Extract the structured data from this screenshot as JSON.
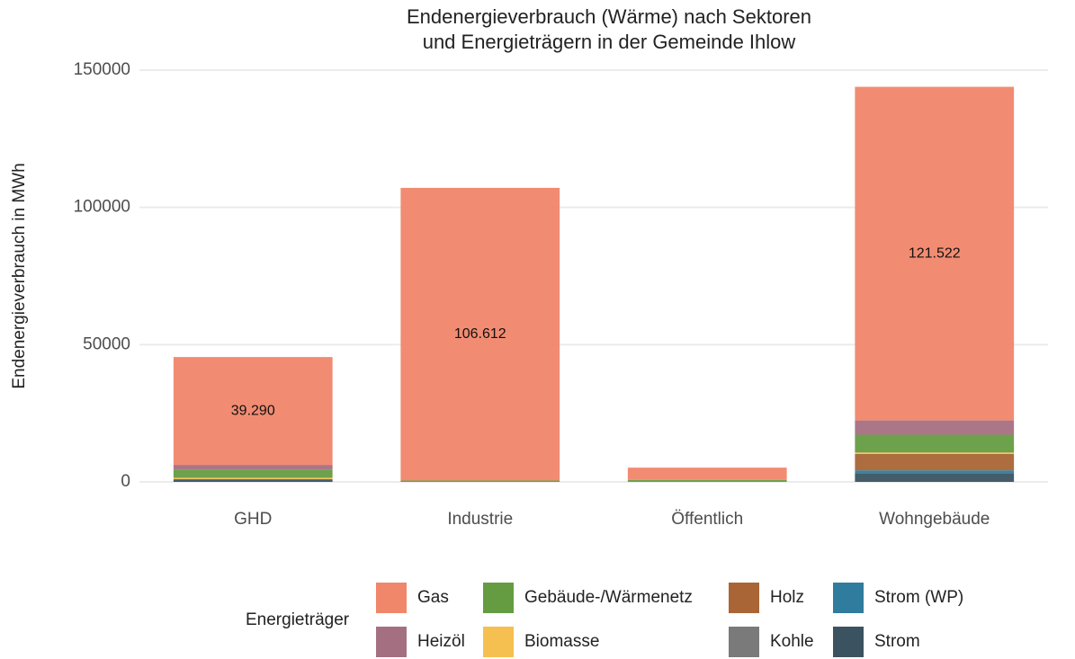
{
  "chart_data": {
    "type": "stacked_bar",
    "title": [
      "Endenergieverbrauch (Wärme) nach Sektoren",
      "und Energieträgern in der Gemeinde Ihlow"
    ],
    "y_label": "Endenergieverbrauch in MWh",
    "legend_title": "Energieträger",
    "categories": [
      "GHD",
      "Industrie",
      "Öffentlich",
      "Wohngebäude"
    ],
    "series": [
      {
        "name": "Gas",
        "color": "#f0866a",
        "values": [
          39290,
          106612,
          4500,
          121522
        ],
        "value_labels": [
          "39.290",
          "106.612",
          null,
          "121.522"
        ]
      },
      {
        "name": "Heizöl",
        "color": "#a56f82",
        "values": [
          1700,
          0,
          0,
          5200
        ]
      },
      {
        "name": "Gebäude-/Wärmenetz",
        "color": "#659c41",
        "values": [
          3000,
          500,
          700,
          6500
        ]
      },
      {
        "name": "Biomasse",
        "color": "#f5c04f",
        "values": [
          500,
          0,
          0,
          500
        ]
      },
      {
        "name": "Holz",
        "color": "#a96535",
        "values": [
          0,
          0,
          0,
          6000
        ]
      },
      {
        "name": "Kohle",
        "color": "#7a7a7a",
        "values": [
          0,
          0,
          0,
          0
        ]
      },
      {
        "name": "Strom (WP)",
        "color": "#2f7c9e",
        "values": [
          200,
          0,
          0,
          1000
        ]
      },
      {
        "name": "Strom",
        "color": "#3b5361",
        "values": [
          800,
          0,
          0,
          3200
        ]
      }
    ],
    "ylim": [
      0,
      150000
    ],
    "yticks": [
      0,
      50000,
      100000,
      150000
    ],
    "grid": true
  }
}
